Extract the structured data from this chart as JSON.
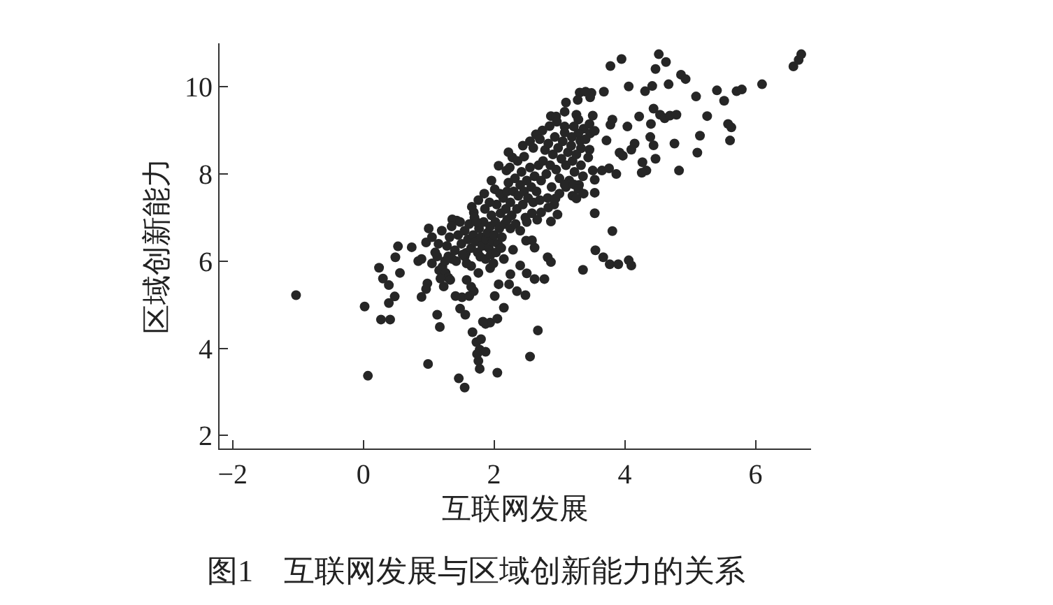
{
  "chart_data": {
    "type": "scatter",
    "xlabel": "互联网发展",
    "ylabel": "区域创新能力",
    "annotations": [
      "图1　互联网发展与区域创新能力的关系"
    ],
    "color": "#262626",
    "marker": "circle",
    "xlim": [
      -2.2,
      6.85
    ],
    "ylim": [
      1.7,
      11
    ],
    "xticks": [
      -2,
      0,
      2,
      4,
      6
    ],
    "yticks": [
      2,
      4,
      6,
      8,
      10
    ],
    "x": [
      3.78,
      3.95,
      4.52,
      4.63,
      4.47,
      4.06,
      4.86,
      4.93,
      4.67,
      4.42,
      4.31,
      5.09,
      5.41,
      5.52,
      5.71,
      5.79,
      6.1,
      6.58,
      6.66,
      6.7,
      3.68,
      3.49,
      3.47,
      3.31,
      3.4,
      3.1,
      3.28,
      2.87,
      2.95,
      3.08,
      3.26,
      3.29,
      3.22,
      3.37,
      3.47,
      3.54,
      3.46,
      3.51,
      3.29,
      3.19,
      3.32,
      3.4,
      3.46,
      3.33,
      3.44,
      3.81,
      3.78,
      4.04,
      4.22,
      4.44,
      4.4,
      4.54,
      4.61,
      4.69,
      4.79,
      5.26,
      5.58,
      5.63,
      5.15,
      5.61,
      4.39,
      4.44,
      4.47,
      4.76,
      5.11,
      4.15,
      4.1,
      3.92,
      3.97,
      3.72,
      4.27,
      4.33,
      4.26,
      4.83,
      3.65,
      3.76,
      3.87,
      3.51,
      3.54,
      3.54,
      3.54,
      3.81,
      2.64,
      3.08,
      3.55,
      3.67,
      3.77,
      3.9,
      4.06,
      4.1,
      3.36,
      2.49,
      2.62,
      2.29,
      2.82,
      2.87,
      2.5,
      2.62,
      2.77,
      2.23,
      2.35,
      2.48,
      2.15,
      2.67,
      2.55,
      2.15,
      -1.03,
      0.02,
      0.07,
      0.24,
      0.3,
      0.39,
      0.48,
      0.39,
      0.27,
      0.41,
      0.53,
      0.49,
      0.56,
      0.74,
      0.84,
      0.89,
      0.96,
      0.98,
      0.96,
      0.89,
      0.99,
      1.13,
      1.17,
      1.13,
      1.21,
      1.23,
      1.16,
      1.26,
      1.3,
      1.33,
      1.41,
      1.51,
      1.62,
      1.69,
      1.65,
      1.48,
      1.56,
      1.46,
      1.55,
      1.67,
      1.73,
      1.8,
      1.78,
      1.87,
      1.76,
      1.78,
      1.74,
      1.87,
      1.94,
      1.83,
      2.05,
      2.05,
      2.01,
      2.07,
      1.94,
      1.99,
      1.58,
      1.76,
      1.55,
      1.57,
      1.65,
      1.3,
      1.36,
      1.36,
      1.43,
      1.69,
      1.96,
      2.07,
      2.19,
      2.28,
      1.0,
      1.05,
      1.1,
      1.15,
      1.2,
      1.25,
      1.28,
      1.32,
      1.35,
      1.4,
      1.42,
      1.45,
      1.48,
      1.5,
      1.52,
      1.55,
      1.58,
      1.6,
      1.62,
      1.05,
      1.18,
      1.65,
      1.68,
      1.7,
      1.72,
      1.75,
      1.77,
      1.8,
      1.82,
      1.84,
      1.86,
      1.88,
      1.9,
      1.92,
      1.94,
      1.96,
      1.98,
      2.0,
      2.02,
      2.04,
      2.06,
      2.08,
      2.1,
      2.12,
      2.14,
      2.16,
      2.18,
      1.73,
      1.79,
      1.87,
      1.95,
      2.03,
      2.11,
      1.66,
      1.76,
      1.85,
      1.93,
      2.01,
      2.09,
      2.2,
      2.2,
      2.22,
      2.25,
      2.27,
      2.3,
      2.32,
      2.35,
      2.37,
      2.4,
      2.42,
      2.44,
      2.46,
      2.48,
      2.5,
      2.52,
      2.55,
      2.57,
      2.6,
      2.62,
      2.65,
      2.68,
      2.25,
      2.33,
      2.4,
      2.5,
      2.58,
      2.66,
      2.7,
      2.24,
      2.36,
      2.46,
      2.72,
      2.75,
      2.78,
      2.8,
      2.83,
      2.86,
      2.88,
      2.9,
      2.93,
      2.95,
      2.98,
      3.0,
      3.03,
      3.05,
      3.08,
      3.1,
      3.13,
      3.15,
      3.18,
      3.2,
      3.23,
      3.26,
      3.3,
      3.33,
      3.36,
      2.74,
      2.85,
      2.96,
      2.6,
      2.7,
      3.0,
      3.1,
      2.82,
      2.92,
      3.2,
      3.08,
      3.22,
      3.29,
      2.94,
      2.83,
      2.72,
      2.97,
      3.26,
      3.37,
      2.87,
      2.58,
      2.22,
      2.44,
      2.55,
      2.25,
      2.4
    ],
    "values": [
      10.48,
      10.64,
      10.75,
      10.57,
      10.41,
      10.01,
      10.28,
      10.18,
      10.06,
      10.02,
      9.9,
      9.78,
      9.92,
      9.68,
      9.9,
      9.94,
      10.06,
      10.47,
      10.62,
      10.75,
      9.89,
      9.86,
      9.76,
      9.87,
      9.89,
      9.64,
      9.7,
      9.33,
      9.32,
      9.43,
      9.36,
      9.25,
      9.09,
      9.04,
      8.93,
      8.99,
      9.15,
      9.34,
      8.93,
      8.85,
      8.76,
      8.8,
      8.56,
      8.59,
      8.38,
      9.25,
      9.13,
      9.09,
      9.32,
      9.5,
      9.15,
      9.36,
      9.28,
      9.34,
      9.36,
      9.33,
      9.15,
      9.07,
      8.88,
      8.77,
      8.85,
      8.66,
      8.35,
      8.7,
      8.49,
      8.7,
      8.56,
      8.49,
      8.42,
      8.77,
      8.27,
      8.08,
      8.03,
      8.08,
      8.08,
      8.13,
      8.0,
      8.08,
      7.87,
      7.57,
      7.1,
      6.69,
      8.91,
      9.09,
      6.25,
      6.09,
      5.93,
      5.93,
      6.02,
      5.9,
      5.8,
      6.47,
      6.31,
      6.26,
      6.09,
      5.98,
      5.72,
      5.59,
      5.59,
      5.47,
      5.31,
      5.22,
      4.93,
      4.41,
      3.81,
      6.05,
      5.22,
      4.96,
      3.37,
      5.85,
      5.6,
      5.45,
      5.19,
      5.04,
      4.66,
      4.66,
      6.34,
      6.09,
      5.73,
      6.32,
      6.0,
      6.05,
      6.43,
      5.49,
      5.36,
      5.18,
      3.64,
      4.77,
      4.49,
      6.11,
      5.87,
      5.42,
      5.79,
      5.73,
      5.62,
      5.57,
      5.2,
      5.17,
      5.2,
      5.31,
      5.41,
      4.91,
      4.77,
      3.31,
      3.1,
      4.37,
      4.14,
      4.21,
      3.97,
      3.92,
      3.71,
      3.53,
      3.87,
      4.56,
      4.59,
      4.61,
      4.68,
      3.44,
      5.2,
      5.47,
      5.84,
      5.95,
      5.57,
      5.73,
      6.11,
      6.19,
      5.89,
      6.11,
      6.05,
      6.96,
      6.93,
      7.12,
      7.85,
      8.19,
      8.08,
      8.38,
      6.75,
      6.55,
      6.2,
      6.4,
      6.7,
      6.0,
      6.35,
      6.55,
      6.8,
      6.25,
      6.0,
      6.6,
      6.9,
      6.4,
      6.15,
      6.7,
      5.95,
      6.5,
      6.85,
      5.95,
      5.6,
      6.3,
      6.6,
      7.0,
      6.45,
      6.2,
      6.75,
      6.55,
      6.35,
      6.9,
      7.2,
      6.5,
      6.65,
      6.3,
      6.8,
      7.05,
      6.45,
      6.6,
      6.9,
      7.3,
      6.4,
      6.75,
      7.1,
      6.55,
      7.45,
      6.85,
      7.2,
      6.9,
      6.1,
      6.05,
      6.15,
      6.2,
      6.3,
      7.25,
      7.4,
      7.55,
      7.35,
      7.65,
      7.55,
      6.95,
      7.6,
      7.8,
      7.35,
      7.05,
      7.6,
      7.9,
      7.2,
      7.5,
      7.75,
      8.05,
      7.3,
      7.6,
      7.0,
      7.85,
      7.45,
      8.15,
      7.7,
      7.35,
      7.95,
      7.6,
      8.2,
      6.75,
      6.85,
      6.7,
      6.9,
      7.1,
      6.95,
      7.4,
      8.15,
      8.3,
      8.4,
      7.85,
      8.3,
      8.55,
      8.0,
      8.7,
      8.2,
      7.7,
      8.45,
      8.85,
      8.1,
      8.6,
      7.9,
      8.35,
      8.75,
      8.95,
      8.2,
      8.5,
      7.85,
      8.65,
      8.3,
      8.05,
      8.45,
      7.75,
      8.2,
      7.95,
      9.0,
      9.1,
      9.2,
      8.6,
      8.8,
      7.55,
      7.7,
      7.45,
      7.3,
      7.5,
      7.76,
      7.76,
      7.65,
      7.44,
      7.23,
      7.12,
      7.07,
      7.44,
      7.55,
      6.91,
      6.48,
      8.5,
      8.65,
      8.75,
      5.7,
      5.9
    ]
  }
}
